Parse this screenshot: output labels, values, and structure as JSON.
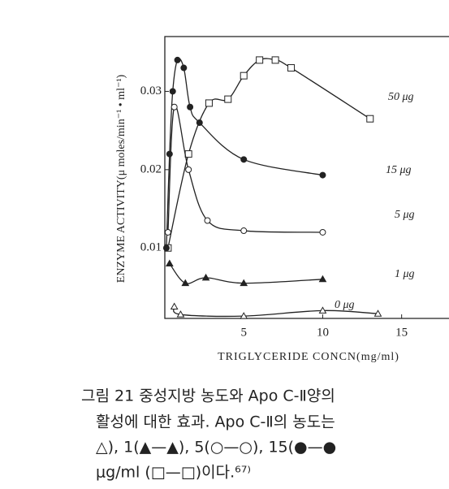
{
  "chart_data": {
    "type": "line",
    "xlabel": "TRIGLYCERIDE CONCN(mg/ml)",
    "ylabel": "ENZYME ACTIVITY(μ moles/min⁻¹ • ml⁻¹)",
    "xlim": [
      0,
      18
    ],
    "ylim": [
      0.001,
      0.037
    ],
    "xticks": [
      5,
      10,
      15
    ],
    "yticks": [
      0.01,
      0.02,
      0.03
    ],
    "series": [
      {
        "name": "50 μg",
        "color": "#222222",
        "marker": "square",
        "x": [
          0.2,
          1.5,
          2.8,
          4,
          5,
          6,
          7,
          8,
          13
        ],
        "values": [
          0.01,
          0.022,
          0.0285,
          0.029,
          0.032,
          0.034,
          0.034,
          0.033,
          0.0265
        ]
      },
      {
        "name": "15 μg",
        "color": "#222222",
        "marker": "filled-circle",
        "x": [
          0.1,
          0.3,
          0.5,
          0.8,
          1.2,
          1.6,
          2.2,
          5,
          10
        ],
        "values": [
          0.01,
          0.022,
          0.03,
          0.034,
          0.033,
          0.028,
          0.026,
          0.0213,
          0.0193
        ]
      },
      {
        "name": "5 μg",
        "color": "#222222",
        "marker": "circle",
        "x": [
          0.2,
          0.6,
          1.5,
          2.7,
          5,
          10
        ],
        "values": [
          0.012,
          0.028,
          0.02,
          0.0135,
          0.0122,
          0.012
        ]
      },
      {
        "name": "1 μg",
        "color": "#222222",
        "marker": "filled-triangle",
        "x": [
          0.3,
          1.3,
          2.6,
          5,
          10
        ],
        "values": [
          0.008,
          0.0055,
          0.0062,
          0.0055,
          0.006
        ]
      },
      {
        "name": "0 μg",
        "color": "#222222",
        "marker": "triangle",
        "x": [
          0.6,
          1,
          5,
          10,
          13.5
        ],
        "values": [
          0.0025,
          0.0015,
          0.0013,
          0.002,
          0.0016
        ]
      }
    ]
  },
  "caption": [
    "그림 21  중성지방 농도와 Apo C-Ⅱ양의",
    "활성에 대한 효과. Apo C-Ⅱ의 농도는",
    "△), 1(▲—▲), 5(○—○), 15(●—●",
    "μg/ml (□—□)이다.⁶⁷⁾"
  ]
}
